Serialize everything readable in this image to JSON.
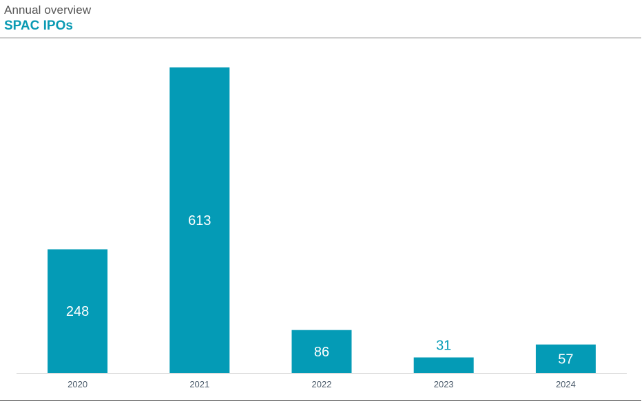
{
  "header": {
    "subtitle": "Annual overview",
    "title": "SPAC IPOs"
  },
  "colors": {
    "bar": "#049BB6",
    "title": "#0A9AB3",
    "label_inside": "#FFFFFF",
    "label_outside": "#049BB6",
    "tick_label": "#4A5A6A",
    "axis": "#D0D0D0"
  },
  "chart_data": {
    "type": "bar",
    "title": "SPAC IPOs",
    "subtitle": "Annual overview",
    "categories": [
      "2020",
      "2021",
      "2022",
      "2023",
      "2024"
    ],
    "values": [
      248,
      613,
      86,
      31,
      57
    ],
    "value_labels": [
      "248",
      "613",
      "86",
      "31",
      "57"
    ],
    "ylim": [
      0,
      613
    ],
    "grid": false,
    "legend": "none"
  }
}
